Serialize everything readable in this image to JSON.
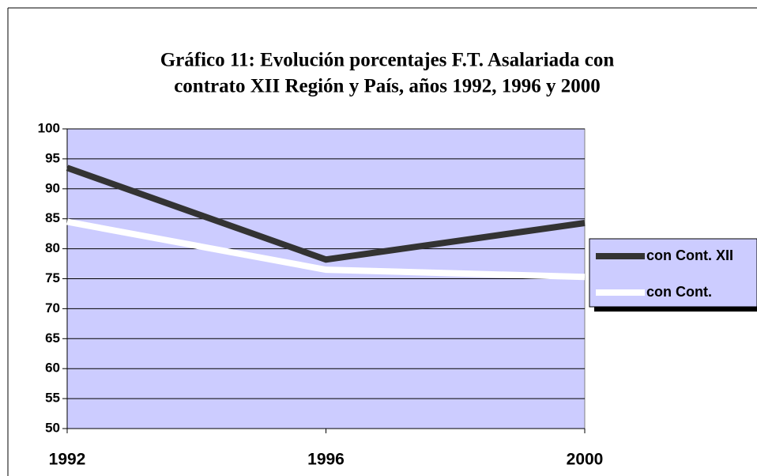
{
  "chart_data": {
    "type": "line",
    "title": "Gráfico 11: Evolución porcentajes F.T. Asalariada con",
    "subtitle": "contrato XII Región y País, años 1992, 1996 y 2000",
    "categories": [
      "1992",
      "1996",
      "2000"
    ],
    "series": [
      {
        "name": "con Cont. XII",
        "color": "#333333",
        "values": [
          93.5,
          78.2,
          84.3
        ]
      },
      {
        "name": "con Cont.",
        "color": "#ffffff",
        "values": [
          84.5,
          76.5,
          75.3
        ]
      }
    ],
    "ylim": [
      50,
      100
    ],
    "yticks": [
      50,
      55,
      60,
      65,
      70,
      75,
      80,
      85,
      90,
      95,
      100
    ],
    "grid": true,
    "legend": "right",
    "plot_background": "#ccccff"
  }
}
